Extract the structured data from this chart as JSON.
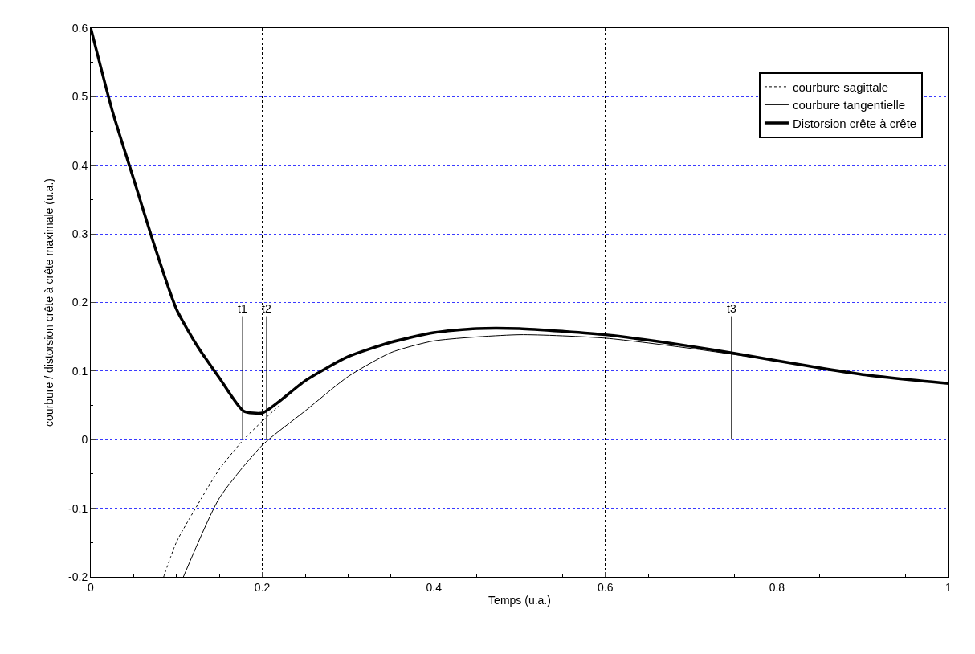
{
  "chart_data": {
    "type": "line",
    "xlabel": "Temps (u.a.)",
    "ylabel": "courbure / distorsion crête à crête maximale (u.a.)",
    "xlim": [
      0,
      1
    ],
    "ylim": [
      -0.2,
      0.6
    ],
    "xticks": [
      0,
      0.2,
      0.4,
      0.6,
      0.8,
      1
    ],
    "yticks": [
      -0.2,
      -0.1,
      0,
      0.1,
      0.2,
      0.3,
      0.4,
      0.5,
      0.6
    ],
    "grid": true,
    "legend": "top right",
    "marker": "none",
    "series": [
      {
        "name": "courbure sagittale",
        "color": "#000000",
        "line_style": "dotted",
        "x": [
          0.085,
          0.1,
          0.125,
          0.15,
          0.178,
          0.2,
          0.22
        ],
        "values": [
          -0.2,
          -0.149,
          -0.094,
          -0.043,
          0.0,
          0.027,
          0.05
        ]
      },
      {
        "name": "courbure tangentielle",
        "color": "#000000",
        "line_style": "solid",
        "x": [
          0.108,
          0.15,
          0.2,
          0.25,
          0.3,
          0.35,
          0.4,
          0.5,
          0.6,
          0.7,
          0.8,
          0.9,
          1.0
        ],
        "values": [
          -0.2,
          -0.085,
          -0.008,
          0.042,
          0.092,
          0.127,
          0.144,
          0.153,
          0.148,
          0.133,
          0.115,
          0.095,
          0.082
        ]
      },
      {
        "name": "Distorsion crête à crête",
        "color": "#000000",
        "line_style": "solid",
        "x": [
          0,
          0.025,
          0.05,
          0.075,
          0.1,
          0.125,
          0.15,
          0.178,
          0.2,
          0.22,
          0.25,
          0.3,
          0.35,
          0.4,
          0.45,
          0.5,
          0.55,
          0.6,
          0.7,
          0.75,
          0.8,
          0.9,
          1.0
        ],
        "values": [
          0.6,
          0.48,
          0.38,
          0.28,
          0.19,
          0.135,
          0.09,
          0.042,
          0.039,
          0.056,
          0.086,
          0.121,
          0.142,
          0.156,
          0.162,
          0.162,
          0.158,
          0.153,
          0.136,
          0.126,
          0.115,
          0.095,
          0.082
        ]
      }
    ],
    "ref_lines": [
      {
        "axis": "x",
        "value": 0.177,
        "label": "t1",
        "color": "#000000"
      },
      {
        "axis": "x",
        "value": 0.205,
        "label": "t2",
        "color": "#000000"
      },
      {
        "axis": "x",
        "value": 0.747,
        "label": "t3",
        "color": "#000000"
      }
    ]
  }
}
